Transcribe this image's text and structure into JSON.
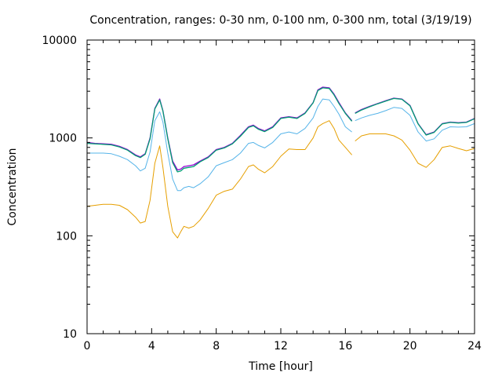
{
  "chart_data": {
    "type": "line",
    "title": "Concentration, ranges: 0-30 nm, 0-100 nm, 0-300 nm, total (3/19/19)",
    "xlabel": "Time [hour]",
    "ylabel": "Concentration",
    "xlim": [
      0,
      24
    ],
    "ylim": [
      10,
      10000
    ],
    "y_scale": "log",
    "grid": false,
    "legend": "none",
    "x_ticks": [
      0,
      4,
      8,
      12,
      16,
      20,
      24
    ],
    "x_tick_labels": [
      "0",
      "4",
      "8",
      "12",
      "16",
      "20",
      "24"
    ],
    "y_ticks": [
      10,
      100,
      1000,
      10000
    ],
    "y_tick_labels": [
      "10",
      "100",
      "1000",
      "10000"
    ],
    "gap": [
      16.4,
      16.6
    ],
    "x": [
      0,
      0.5,
      1,
      1.5,
      2,
      2.5,
      3,
      3.3,
      3.6,
      3.9,
      4.2,
      4.5,
      4.7,
      5.0,
      5.3,
      5.6,
      5.8,
      6.0,
      6.3,
      6.6,
      7.0,
      7.5,
      8.0,
      8.5,
      9.0,
      9.5,
      10.0,
      10.3,
      10.6,
      11.0,
      11.5,
      12.0,
      12.5,
      13.0,
      13.5,
      14.0,
      14.3,
      14.6,
      15.0,
      15.3,
      15.6,
      16.0,
      16.4,
      16.6,
      17.0,
      17.5,
      18.0,
      18.5,
      19.0,
      19.5,
      20.0,
      20.5,
      21.0,
      21.5,
      22.0,
      22.5,
      23.0,
      23.5,
      24.0
    ],
    "series": [
      {
        "color": "#9400d3",
        "values": [
          900,
          880,
          870,
          860,
          820,
          760,
          670,
          640,
          690,
          1000,
          2000,
          2500,
          1900,
          1000,
          580,
          470,
          480,
          510,
          520,
          530,
          580,
          640,
          760,
          800,
          880,
          1060,
          1300,
          1350,
          1250,
          1180,
          1300,
          1600,
          1650,
          1600,
          1800,
          2300,
          3100,
          3300,
          3250,
          2800,
          2300,
          1800,
          1500,
          1800,
          1950,
          2100,
          2250,
          2400,
          2550,
          2500,
          2150,
          1400,
          1080,
          1150,
          1400,
          1450,
          1430,
          1450,
          1580
        ]
      },
      {
        "color": "#009e73",
        "values": [
          880,
          870,
          860,
          850,
          810,
          750,
          660,
          630,
          680,
          980,
          1980,
          2450,
          1880,
          980,
          560,
          450,
          460,
          490,
          500,
          510,
          570,
          630,
          750,
          790,
          870,
          1040,
          1280,
          1330,
          1230,
          1160,
          1280,
          1580,
          1630,
          1580,
          1780,
          2280,
          3050,
          3250,
          3200,
          2750,
          2250,
          1780,
          1480,
          1780,
          1930,
          2080,
          2230,
          2380,
          2530,
          2480,
          2130,
          1390,
          1070,
          1140,
          1390,
          1440,
          1420,
          1440,
          1570
        ]
      },
      {
        "color": "#56b4e9",
        "values": [
          700,
          700,
          700,
          690,
          650,
          600,
          520,
          460,
          490,
          720,
          1500,
          1850,
          1450,
          700,
          380,
          290,
          290,
          310,
          320,
          310,
          340,
          400,
          520,
          560,
          600,
          700,
          880,
          900,
          840,
          790,
          900,
          1100,
          1150,
          1100,
          1250,
          1600,
          2100,
          2500,
          2450,
          2100,
          1750,
          1300,
          1150,
          1500,
          1600,
          1700,
          1780,
          1900,
          2050,
          2000,
          1700,
          1150,
          930,
          980,
          1200,
          1300,
          1290,
          1300,
          1400
        ]
      },
      {
        "color": "#e69f00",
        "values": [
          200,
          205,
          210,
          210,
          205,
          185,
          155,
          135,
          140,
          230,
          550,
          830,
          500,
          200,
          110,
          95,
          110,
          125,
          120,
          125,
          145,
          190,
          260,
          285,
          300,
          380,
          510,
          530,
          480,
          440,
          510,
          650,
          770,
          760,
          760,
          1000,
          1300,
          1400,
          1500,
          1250,
          950,
          800,
          670,
          930,
          1050,
          1100,
          1100,
          1100,
          1050,
          950,
          750,
          550,
          500,
          600,
          800,
          830,
          780,
          740,
          780
        ]
      }
    ]
  }
}
